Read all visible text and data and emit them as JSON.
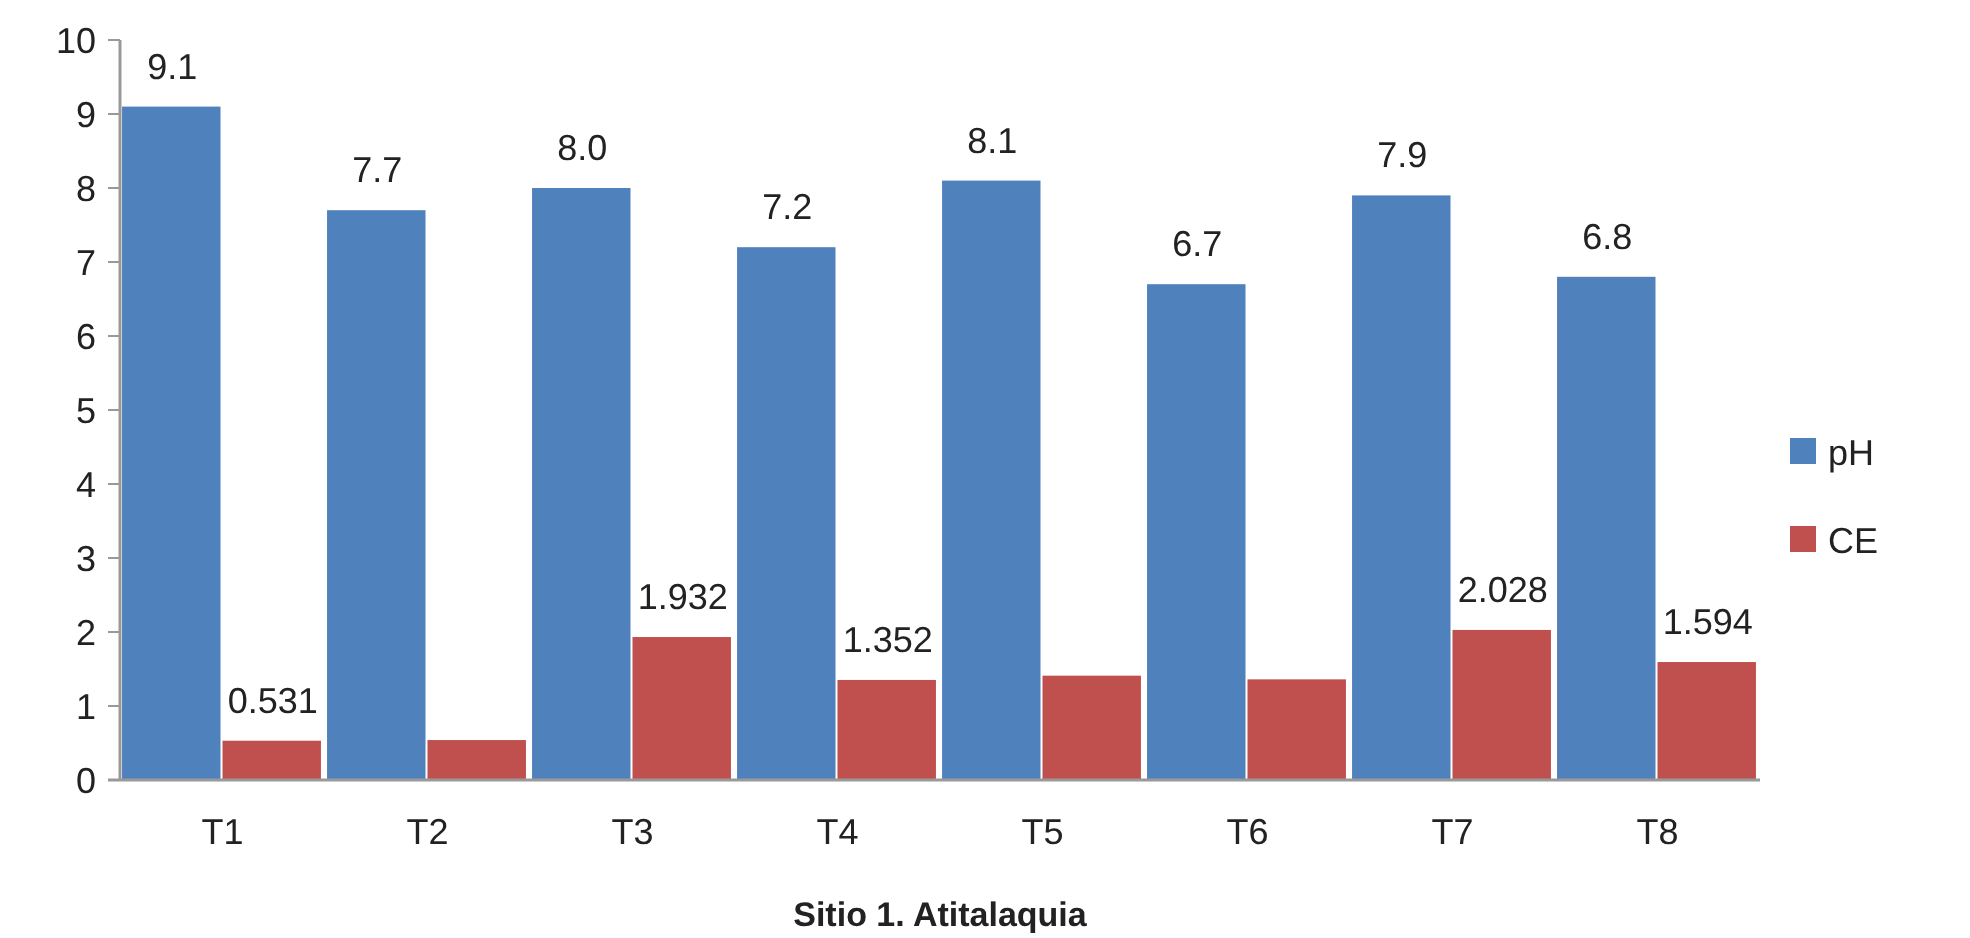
{
  "chart_data": {
    "type": "bar",
    "xlabel": "Sitio 1.  Atitalaquia",
    "categories": [
      "T1",
      "T2",
      "T3",
      "T4",
      "T5",
      "T6",
      "T7",
      "T8"
    ],
    "series": [
      {
        "name": "pH",
        "color": "#4f81bd",
        "values": [
          9.1,
          7.7,
          8.0,
          7.2,
          8.1,
          6.7,
          7.9,
          6.8
        ],
        "value_labels": [
          "9.1",
          "7.7",
          "8.0",
          "7.2",
          "8.1",
          "6.7",
          "7.9",
          "6.8"
        ]
      },
      {
        "name": "CE",
        "color": "#c0504d",
        "values": [
          0.531,
          0.54,
          1.932,
          1.352,
          1.41,
          1.36,
          2.028,
          1.594
        ],
        "value_labels": [
          "0.531",
          null,
          "1.932",
          "1.352",
          null,
          null,
          "2.028",
          "1.594"
        ]
      }
    ],
    "ylim": [
      0,
      10
    ],
    "yticks": [
      0,
      1,
      2,
      3,
      4,
      5,
      6,
      7,
      8,
      9,
      10
    ],
    "grid": false,
    "legend": "right"
  }
}
